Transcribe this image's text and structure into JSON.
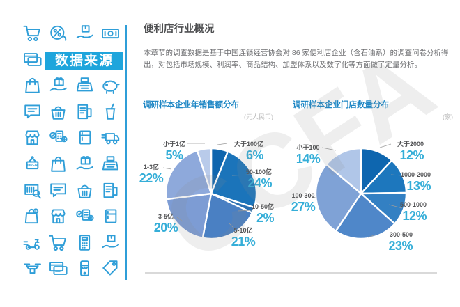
{
  "page": {
    "title": "便利店行业概况",
    "body_paragraph": "本章节的调查数据是基于中国连锁经营协会对 86 家便利店企业（含石油系）的调查问卷分析得出，对包括市场规模、利润率、商品结构、加盟体系以及数字化等方面做了定量分析。",
    "watermark": "CCFA"
  },
  "sidebar": {
    "banner_label": "数据来源",
    "icon_rows": [
      [
        "cart-icon",
        "discount-icon",
        "hand-box-icon",
        "banknote-icon"
      ],
      [
        "credit-cards-icon"
      ],
      [
        "shopping-bag-icon",
        "gift-hand-icon",
        "cash-register-icon",
        "piggy-bank-icon"
      ],
      [
        "speech-bubble-icon",
        "basket-icon",
        "receipt-printer-icon",
        "drink-cup-icon"
      ],
      [
        "storefront-icon",
        "pos-terminal-icon",
        "fridge-icon",
        "delivery-truck-icon"
      ],
      [
        "open-sign-icon",
        "shopping-bag-icon",
        "gift-hand-icon",
        "cash-register-icon"
      ],
      [
        "barcode-search-icon",
        "speech-bubble-icon",
        "basket-icon",
        "receipt-printer-icon"
      ],
      [
        "bag-lock-icon",
        "storefront-icon",
        "pos-terminal-icon",
        "fridge-icon"
      ],
      [
        "delivery-scooter-icon",
        "cart-icon",
        "calculator-icon",
        "hand-box-icon"
      ],
      [
        "drone-icon",
        "credit-cards-icon",
        "mobile-store-icon",
        "price-tag-icon"
      ]
    ]
  },
  "chart_data": [
    {
      "type": "pie",
      "title": "调研样本企业年销售额分布",
      "unit": "(元人民币)",
      "start": "top",
      "direction": "clockwise",
      "slices": [
        {
          "label": "大于100亿",
          "value": 6,
          "pct": "6%",
          "color": "#0f66ae"
        },
        {
          "label": "50-100亿",
          "value": 24,
          "pct": "24%",
          "color": "#1b74ba"
        },
        {
          "label": "10-50亿",
          "value": 2,
          "pct": "2%",
          "color": "#2a6fb0"
        },
        {
          "label": "5-10亿",
          "value": 21,
          "pct": "21%",
          "color": "#4a80c3"
        },
        {
          "label": "3-5亿",
          "value": 20,
          "pct": "20%",
          "color": "#7d9cd4"
        },
        {
          "label": "1-3亿",
          "value": 22,
          "pct": "22%",
          "color": "#8ea9db"
        },
        {
          "label": "小于1亿",
          "value": 5,
          "pct": "5%",
          "color": "#b9cbea"
        }
      ]
    },
    {
      "type": "pie",
      "title": "调研样本企业门店数量分布",
      "unit": "(家)",
      "start": "top",
      "direction": "clockwise",
      "slices": [
        {
          "label": "大于2000",
          "value": 12,
          "pct": "12%",
          "color": "#0e66af"
        },
        {
          "label": "1000-2000",
          "value": 13,
          "pct": "13%",
          "color": "#1d77bd"
        },
        {
          "label": "500-1000",
          "value": 12,
          "pct": "12%",
          "color": "#3380c3"
        },
        {
          "label": "300-500",
          "value": 23,
          "pct": "23%",
          "color": "#4f87c9"
        },
        {
          "label": "100-300",
          "value": 27,
          "pct": "27%",
          "color": "#7fa2d6"
        },
        {
          "label": "小于100",
          "value": 14,
          "pct": "14%",
          "color": "#b0c6e8"
        }
      ]
    }
  ]
}
